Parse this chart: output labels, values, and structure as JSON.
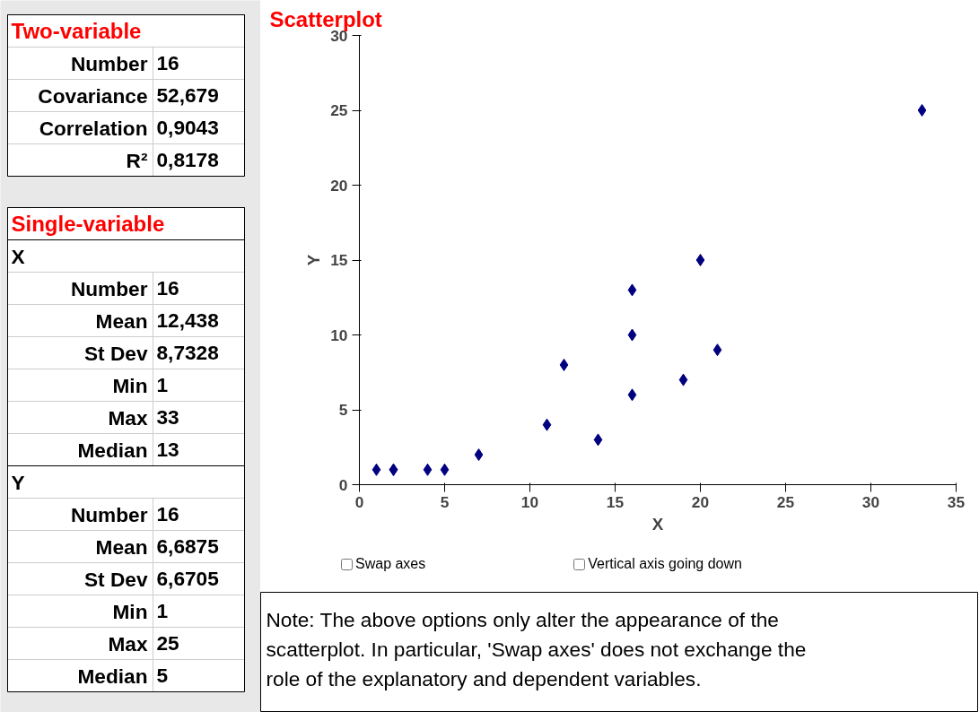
{
  "chart_data": [
    {
      "type": "other",
      "title": "Two-variable",
      "categories": [
        "Number",
        "Covariance",
        "Correlation",
        "R²"
      ],
      "value_labels": [
        "16",
        "52,679",
        "0,9043",
        "0,8178"
      ]
    },
    {
      "type": "other",
      "title": "Single-variable",
      "categories": [
        "X",
        "Number",
        "Mean",
        "St Dev",
        "Min",
        "Max",
        "Median",
        "Y",
        "Number",
        "Mean",
        "St Dev",
        "Min",
        "Max",
        "Median"
      ],
      "value_labels": [
        null,
        "16",
        "12,438",
        "8,7328",
        "1",
        "33",
        "13",
        null,
        "16",
        "6,6875",
        "6,6705",
        "1",
        "25",
        "5"
      ]
    },
    {
      "type": "scatter",
      "title": "Scatterplot",
      "xlabel": "X",
      "ylabel": "Y",
      "x": [
        1,
        2,
        2,
        4,
        5,
        7,
        11,
        12,
        14,
        16,
        16,
        16,
        19,
        20,
        21,
        33
      ],
      "values": [
        1,
        1,
        1,
        1,
        1,
        2,
        4,
        8,
        3,
        13,
        10,
        6,
        7,
        15,
        9,
        25
      ],
      "color": "#000080",
      "marker": "diamond",
      "xlim": [
        0,
        35
      ],
      "xticks": [
        0,
        5,
        10,
        15,
        20,
        25,
        30,
        35
      ],
      "ylim": [
        0,
        30
      ],
      "yticks": [
        0,
        5,
        10,
        15,
        20,
        25,
        30
      ],
      "grid": false,
      "annotations": [
        "Swap axes",
        "Vertical axis going down",
        "Note: The above options only alter the appearance of the scatterplot. In particular, 'Swap axes' does not exchange the role of the explanatory and dependent variables."
      ]
    }
  ]
}
